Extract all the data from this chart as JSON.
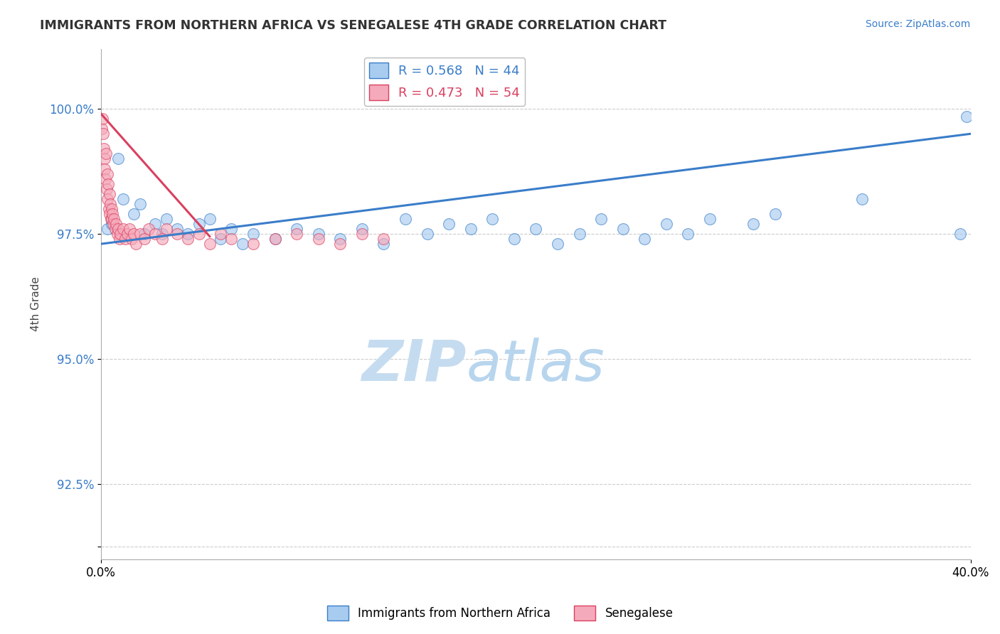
{
  "title": "IMMIGRANTS FROM NORTHERN AFRICA VS SENEGALESE 4TH GRADE CORRELATION CHART",
  "source_text": "Source: ZipAtlas.com",
  "ylabel": "4th Grade",
  "x_label_bottom_left": "0.0%",
  "x_label_bottom_right": "40.0%",
  "y_ticks": [
    91.25,
    92.5,
    95.0,
    97.5,
    100.0
  ],
  "y_tick_labels": [
    "",
    "92.5%",
    "95.0%",
    "97.5%",
    "100.0%"
  ],
  "xlim": [
    0.0,
    40.0
  ],
  "ylim": [
    91.0,
    101.2
  ],
  "blue_R": 0.568,
  "blue_N": 44,
  "pink_R": 0.473,
  "pink_N": 54,
  "blue_color": "#A8CCF0",
  "pink_color": "#F5AABB",
  "blue_line_color": "#3A7DC9",
  "pink_line_color": "#D94060",
  "legend_label_blue": "Immigrants from Northern Africa",
  "legend_label_pink": "Senegalese",
  "blue_scatter_x": [
    0.3,
    0.5,
    0.8,
    1.0,
    1.5,
    1.8,
    2.0,
    2.5,
    2.8,
    3.0,
    3.5,
    4.0,
    4.5,
    5.0,
    5.5,
    6.0,
    6.5,
    7.0,
    8.0,
    9.0,
    10.0,
    11.0,
    12.0,
    13.0,
    14.0,
    15.0,
    16.0,
    17.0,
    18.0,
    19.0,
    20.0,
    21.0,
    22.0,
    23.0,
    24.0,
    25.0,
    26.0,
    27.0,
    28.0,
    30.0,
    31.0,
    35.0,
    39.5,
    39.8
  ],
  "blue_scatter_y": [
    97.6,
    97.7,
    99.0,
    98.2,
    97.9,
    98.1,
    97.5,
    97.7,
    97.5,
    97.8,
    97.6,
    97.5,
    97.7,
    97.8,
    97.4,
    97.6,
    97.3,
    97.5,
    97.4,
    97.6,
    97.5,
    97.4,
    97.6,
    97.3,
    97.8,
    97.5,
    97.7,
    97.6,
    97.8,
    97.4,
    97.6,
    97.3,
    97.5,
    97.8,
    97.6,
    97.4,
    97.7,
    97.5,
    97.8,
    97.7,
    97.9,
    98.2,
    97.5,
    99.85
  ],
  "pink_scatter_x": [
    0.05,
    0.08,
    0.1,
    0.12,
    0.15,
    0.18,
    0.2,
    0.22,
    0.25,
    0.28,
    0.3,
    0.32,
    0.35,
    0.38,
    0.4,
    0.42,
    0.45,
    0.48,
    0.5,
    0.52,
    0.55,
    0.6,
    0.65,
    0.7,
    0.75,
    0.8,
    0.85,
    0.9,
    1.0,
    1.1,
    1.2,
    1.3,
    1.4,
    1.5,
    1.6,
    1.8,
    2.0,
    2.2,
    2.5,
    2.8,
    3.0,
    3.5,
    4.0,
    4.5,
    5.0,
    5.5,
    6.0,
    7.0,
    8.0,
    9.0,
    10.0,
    11.0,
    12.0,
    13.0
  ],
  "pink_scatter_y": [
    99.6,
    99.8,
    99.5,
    99.2,
    99.0,
    98.8,
    98.6,
    99.1,
    98.4,
    98.7,
    98.2,
    98.5,
    98.0,
    98.3,
    97.9,
    98.1,
    97.8,
    98.0,
    97.8,
    97.9,
    97.7,
    97.8,
    97.6,
    97.7,
    97.5,
    97.6,
    97.4,
    97.5,
    97.6,
    97.4,
    97.5,
    97.6,
    97.4,
    97.5,
    97.3,
    97.5,
    97.4,
    97.6,
    97.5,
    97.4,
    97.6,
    97.5,
    97.4,
    97.5,
    97.3,
    97.5,
    97.4,
    97.3,
    97.4,
    97.5,
    97.4,
    97.3,
    97.5,
    97.4
  ],
  "blue_line_x0": 0.0,
  "blue_line_y0": 97.3,
  "blue_line_x1": 40.0,
  "blue_line_y1": 99.5,
  "pink_line_x0": 0.0,
  "pink_line_y0": 99.9,
  "pink_line_x1": 5.0,
  "pink_line_y1": 97.45,
  "background_color": "#FFFFFF",
  "grid_color": "#CCCCCC",
  "watermark_text1": "ZIP",
  "watermark_text2": "atlas",
  "watermark_color1": "#C5DCF0",
  "watermark_color2": "#B8D5EE"
}
